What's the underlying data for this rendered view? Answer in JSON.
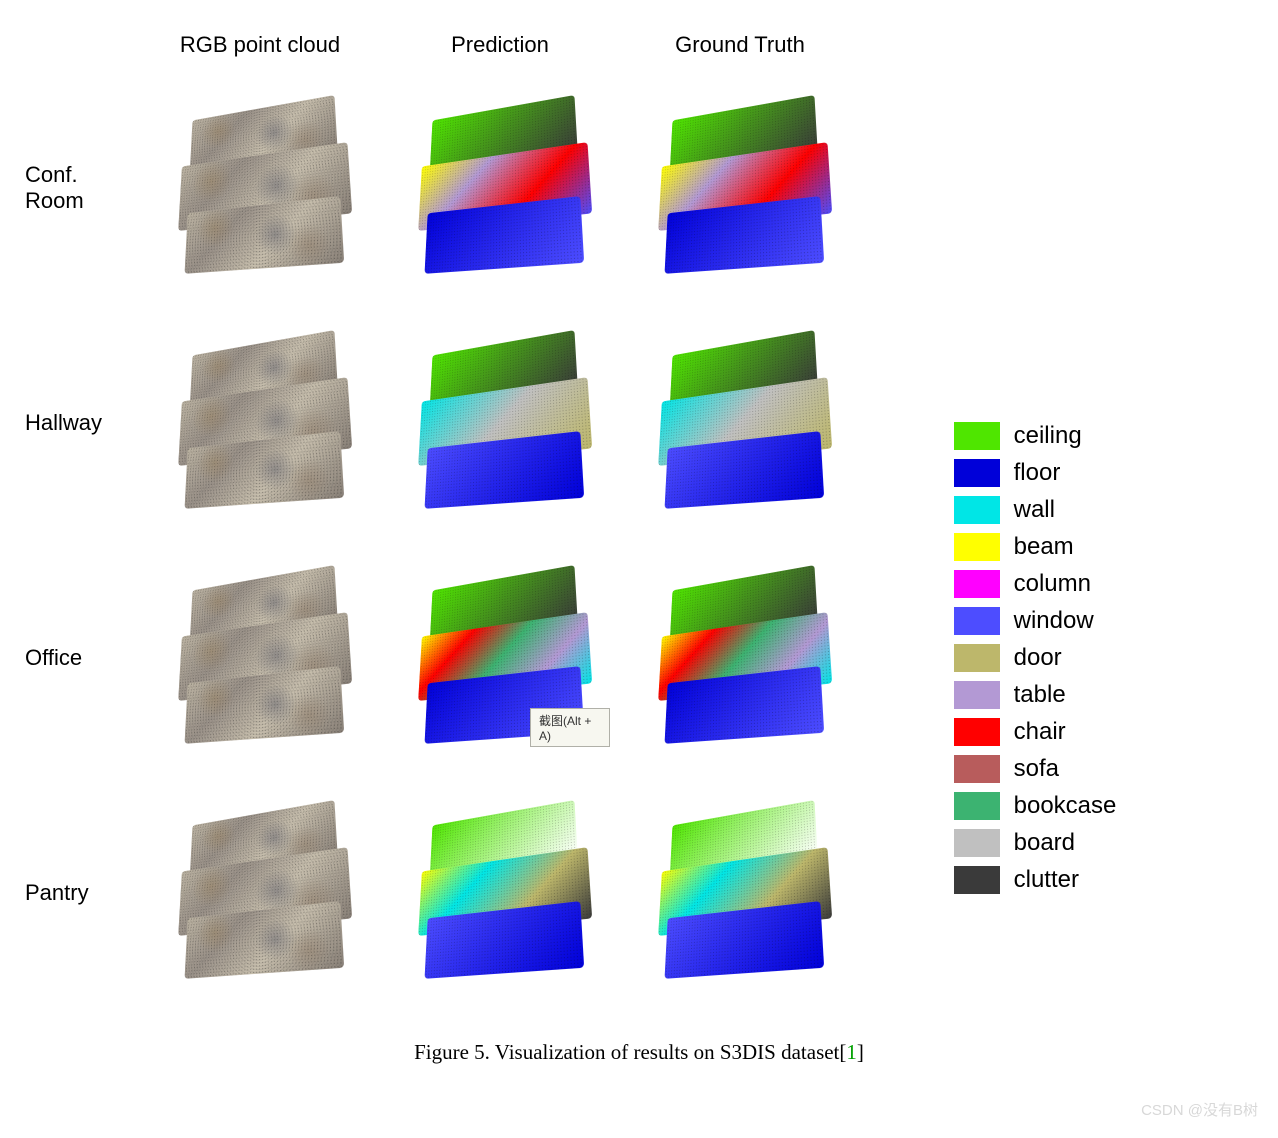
{
  "figure": {
    "caption_prefix": "Figure 5. Visualization of results on S3DIS dataset[",
    "caption_ref": "1",
    "caption_suffix": "]",
    "columns": [
      "RGB point cloud",
      "Prediction",
      "Ground Truth"
    ],
    "rows": [
      "Conf. Room",
      "Hallway",
      "Office",
      "Pantry"
    ],
    "tooltip_text": "截图(Alt + A)",
    "tooltip_position": {
      "row": 2,
      "col": 1
    }
  },
  "legend": {
    "items": [
      {
        "label": "ceiling",
        "color": "#4fe600"
      },
      {
        "label": "floor",
        "color": "#0000d9"
      },
      {
        "label": "wall",
        "color": "#00e6e6"
      },
      {
        "label": "beam",
        "color": "#ffff00"
      },
      {
        "label": "column",
        "color": "#ff00ff"
      },
      {
        "label": "window",
        "color": "#4d4dff"
      },
      {
        "label": "door",
        "color": "#bdb76b"
      },
      {
        "label": "table",
        "color": "#b399d4"
      },
      {
        "label": "chair",
        "color": "#ff0000"
      },
      {
        "label": "sofa",
        "color": "#b85c5c"
      },
      {
        "label": "bookcase",
        "color": "#3cb371"
      },
      {
        "label": "board",
        "color": "#c0c0c0"
      },
      {
        "label": "clutter",
        "color": "#3a3a3a"
      }
    ]
  },
  "thumbnails": {
    "rgb_palette": {
      "top": "#b8b0a0",
      "mid": "#989088",
      "bot": "#888078"
    },
    "seg_scenes": [
      {
        "name": "Conf. Room",
        "top_colors": [
          "#4fe600",
          "#3a3a3a"
        ],
        "mid_colors": [
          "#ffff00",
          "#b399d4",
          "#ff0000",
          "#4d4dff"
        ],
        "bot_colors": [
          "#0000d9",
          "#4d4dff"
        ]
      },
      {
        "name": "Hallway",
        "top_colors": [
          "#4fe600",
          "#3a3a3a"
        ],
        "mid_colors": [
          "#00e6e6",
          "#c0c0c0",
          "#bdb76b"
        ],
        "bot_colors": [
          "#4d4dff",
          "#0000d9"
        ]
      },
      {
        "name": "Office",
        "top_colors": [
          "#4fe600",
          "#3a3a3a"
        ],
        "mid_colors": [
          "#ffff00",
          "#ff0000",
          "#3cb371",
          "#b399d4",
          "#00e6e6"
        ],
        "bot_colors": [
          "#0000d9",
          "#4d4dff"
        ]
      },
      {
        "name": "Pantry",
        "top_colors": [
          "#4fe600",
          "#ffffff"
        ],
        "mid_colors": [
          "#ffff00",
          "#00e6e6",
          "#bdb76b",
          "#3a3a3a"
        ],
        "bot_colors": [
          "#4d4dff",
          "#0000d9"
        ]
      }
    ]
  },
  "watermark": "CSDN @没有B树"
}
